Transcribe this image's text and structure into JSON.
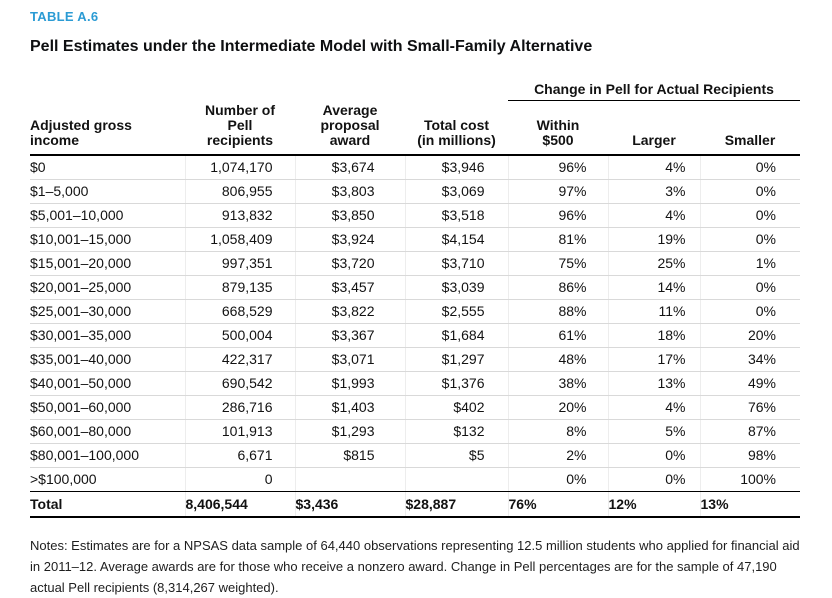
{
  "table_label": "TABLE A.6",
  "title": "Pell Estimates under the Intermediate Model with Small-Family Alternative",
  "colors": {
    "accent_blue": "#2b9bd4",
    "rule_black": "#000000",
    "row_separator": "#d9d9d9"
  },
  "table": {
    "group_header": "Change in Pell for Actual Recipients",
    "columns": [
      "Adjusted gross\nincome",
      "Number of\nPell\nrecipients",
      "Average\nproposal\naward",
      "Total cost\n(in millions)",
      "Within\n$500",
      "Larger",
      "Smaller"
    ],
    "rows": [
      [
        "$0",
        "1,074,170",
        "$3,674",
        "$3,946",
        "96%",
        "4%",
        "0%"
      ],
      [
        "$1–5,000",
        "806,955",
        "$3,803",
        "$3,069",
        "97%",
        "3%",
        "0%"
      ],
      [
        "$5,001–10,000",
        "913,832",
        "$3,850",
        "$3,518",
        "96%",
        "4%",
        "0%"
      ],
      [
        "$10,001–15,000",
        "1,058,409",
        "$3,924",
        "$4,154",
        "81%",
        "19%",
        "0%"
      ],
      [
        "$15,001–20,000",
        "997,351",
        "$3,720",
        "$3,710",
        "75%",
        "25%",
        "1%"
      ],
      [
        "$20,001–25,000",
        "879,135",
        "$3,457",
        "$3,039",
        "86%",
        "14%",
        "0%"
      ],
      [
        "$25,001–30,000",
        "668,529",
        "$3,822",
        "$2,555",
        "88%",
        "11%",
        "0%"
      ],
      [
        "$30,001–35,000",
        "500,004",
        "$3,367",
        "$1,684",
        "61%",
        "18%",
        "20%"
      ],
      [
        "$35,001–40,000",
        "422,317",
        "$3,071",
        "$1,297",
        "48%",
        "17%",
        "34%"
      ],
      [
        "$40,001–50,000",
        "690,542",
        "$1,993",
        "$1,376",
        "38%",
        "13%",
        "49%"
      ],
      [
        "$50,001–60,000",
        "286,716",
        "$1,403",
        "$402",
        "20%",
        "4%",
        "76%"
      ],
      [
        "$60,001–80,000",
        "101,913",
        "$1,293",
        "$132",
        "8%",
        "5%",
        "87%"
      ],
      [
        "$80,001–100,000",
        "6,671",
        "$815",
        "$5",
        "2%",
        "0%",
        "98%"
      ],
      [
        ">$100,000",
        "0",
        "",
        "",
        "0%",
        "0%",
        "100%"
      ]
    ],
    "total_row": [
      "Total",
      "8,406,544",
      "$3,436",
      "$28,887",
      "76%",
      "12%",
      "13%"
    ]
  },
  "notes": "Notes: Estimates are for a NPSAS data sample of 64,440 observations representing 12.5 million students who applied for financial aid in 2011–12. Average awards are for those who receive a nonzero award. Change in Pell percentages are for the sample of 47,190 actual Pell recipients (8,314,267 weighted)."
}
